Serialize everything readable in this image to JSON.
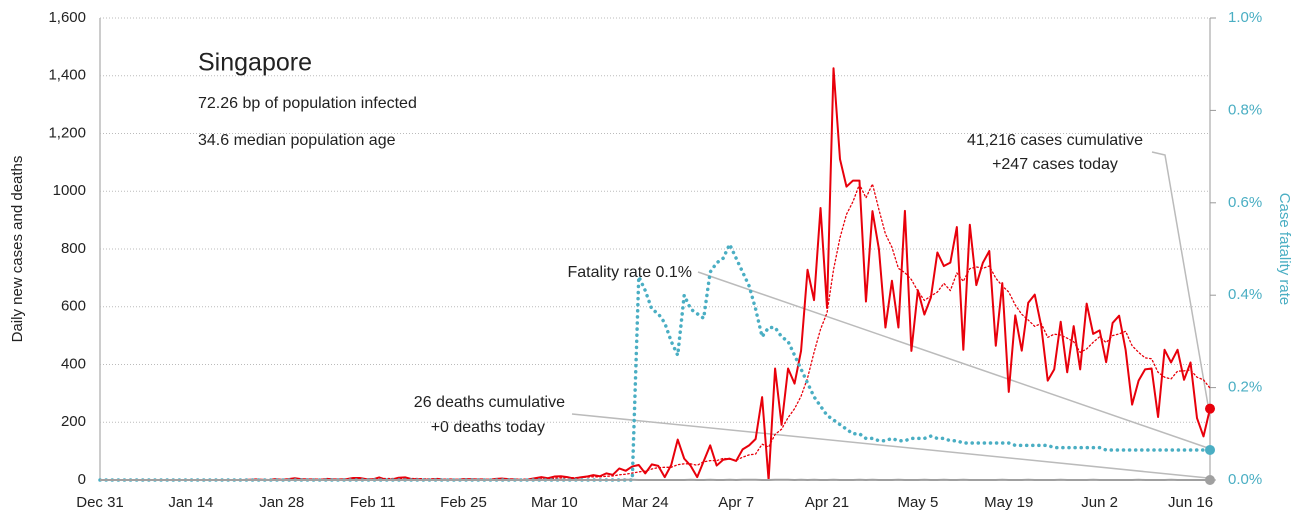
{
  "chart_data": {
    "type": "line",
    "annotations": [
      "Singapore",
      "72.26 bp of population infected",
      "34.6 median population age",
      "41,216 cases cumulative",
      "+247 cases today",
      "Fatality rate 0.1%",
      "26 deaths cumulative",
      "+0 deaths today"
    ],
    "ylabel": "Daily new cases and deaths",
    "y2label": "Case fatality rate",
    "categories": [
      "Dec 31",
      null,
      null,
      null,
      null,
      null,
      null,
      null,
      null,
      null,
      null,
      null,
      null,
      null,
      "Jan 14",
      null,
      null,
      null,
      null,
      null,
      null,
      null,
      null,
      null,
      null,
      null,
      null,
      null,
      "Jan 28",
      null,
      null,
      null,
      null,
      null,
      null,
      null,
      null,
      null,
      null,
      null,
      null,
      null,
      "Feb 11",
      null,
      null,
      null,
      null,
      null,
      null,
      null,
      null,
      null,
      null,
      null,
      null,
      null,
      "Feb 25",
      null,
      null,
      null,
      null,
      null,
      null,
      null,
      null,
      null,
      null,
      null,
      null,
      null,
      "Mar 10",
      null,
      null,
      null,
      null,
      null,
      null,
      null,
      null,
      null,
      null,
      null,
      null,
      null,
      "Mar 24",
      null,
      null,
      null,
      null,
      null,
      null,
      null,
      null,
      null,
      null,
      null,
      null,
      null,
      "Apr 7",
      null,
      null,
      null,
      null,
      null,
      null,
      null,
      null,
      null,
      null,
      null,
      null,
      null,
      "Apr 21",
      null,
      null,
      null,
      null,
      null,
      null,
      null,
      null,
      null,
      null,
      null,
      null,
      null,
      "May 5",
      null,
      null,
      null,
      null,
      null,
      null,
      null,
      null,
      null,
      null,
      null,
      null,
      null,
      "May 19",
      null,
      null,
      null,
      null,
      null,
      null,
      null,
      null,
      null,
      null,
      null,
      null,
      null,
      "Jun 2",
      null,
      null,
      null,
      null,
      null,
      null,
      null,
      null,
      null,
      null,
      null,
      null,
      null,
      "Jun 16",
      null,
      null,
      null
    ],
    "ylim": [
      0,
      1600
    ],
    "yticks": [
      0,
      200,
      400,
      600,
      800,
      1000,
      {
        "value": 1200,
        "label": "1,200"
      },
      {
        "value": 1400,
        "label": "1,400"
      },
      {
        "value": 1600,
        "label": "1,600"
      }
    ],
    "y2lim": [
      0,
      1.0
    ],
    "y2ticks": [
      {
        "value": 0,
        "label": "0.0%"
      },
      {
        "value": 0.2,
        "label": "0.2%"
      },
      {
        "value": 0.4,
        "label": "0.4%"
      },
      {
        "value": 0.6,
        "label": "0.6%"
      },
      {
        "value": 0.8,
        "label": "0.8%"
      },
      {
        "value": 1.0,
        "label": "1.0%"
      }
    ],
    "grid": true,
    "series": [
      {
        "color": "#e8000b",
        "dash": false,
        "values": [
          0,
          0,
          0,
          0,
          0,
          0,
          0,
          0,
          0,
          0,
          0,
          0,
          0,
          0,
          0,
          0,
          0,
          0,
          0,
          0,
          0,
          0,
          0,
          1,
          2,
          1,
          0,
          3,
          1,
          3,
          6,
          3,
          2,
          2,
          1,
          4,
          2,
          2,
          3,
          7,
          7,
          3,
          2,
          9,
          1,
          2,
          8,
          9,
          3,
          3,
          1,
          2,
          4,
          1,
          2,
          1,
          3,
          3,
          2,
          2,
          1,
          4,
          5,
          3,
          2,
          0,
          2,
          6,
          10,
          6,
          12,
          13,
          10,
          5,
          9,
          12,
          17,
          13,
          23,
          18,
          40,
          32,
          47,
          52,
          23,
          54,
          49,
          10,
          52,
          140,
          74,
          49,
          10,
          65,
          120,
          50,
          70,
          74,
          66,
          106,
          120,
          142,
          287,
          0,
          386,
          191,
          386,
          334,
          447,
          728,
          623,
          942,
          596,
          1426,
          1111,
          1016,
          1037,
          1037,
          618,
          931,
          799,
          528,
          690,
          528,
          932,
          447,
          657,
          573,
          632,
          788,
          741,
          753,
          876,
          451,
          884,
          675,
          752,
          793,
          465,
          682,
          305,
          570,
          448,
          614,
          642,
          533,
          344,
          383,
          548,
          373,
          533,
          383,
          611,
          506,
          518,
          408,
          544,
          569,
          451,
          261,
          344,
          383,
          386,
          218,
          451,
          407,
          451,
          347,
          407,
          214,
          151,
          247
        ]
      },
      {
        "color": "#e8000b",
        "dash": true,
        "values": [
          0,
          0,
          0,
          0,
          0,
          0,
          0,
          0,
          0,
          0,
          0,
          0,
          0,
          0,
          0,
          0,
          0,
          0,
          0,
          0,
          0,
          0,
          0,
          0,
          0,
          1,
          1,
          1,
          1,
          1,
          2,
          2,
          2,
          3,
          3,
          3,
          3,
          2,
          2,
          3,
          4,
          4,
          4,
          5,
          5,
          5,
          5,
          5,
          5,
          5,
          4,
          4,
          4,
          3,
          3,
          2,
          2,
          2,
          2,
          2,
          2,
          2,
          3,
          3,
          3,
          3,
          3,
          3,
          4,
          5,
          6,
          7,
          8,
          8,
          9,
          10,
          11,
          11,
          13,
          14,
          18,
          20,
          24,
          28,
          31,
          38,
          43,
          44,
          44,
          53,
          56,
          56,
          51,
          63,
          67,
          67,
          75,
          72,
          68,
          79,
          87,
          90,
          124,
          114,
          158,
          176,
          216,
          247,
          290,
          353,
          442,
          522,
          579,
          728,
          839,
          920,
          964,
          1024,
          977,
          1025,
          936,
          852,
          806,
          733,
          718,
          694,
          654,
          622,
          637,
          651,
          681,
          656,
          717,
          688,
          732,
          738,
          733,
          741,
          699,
          672,
          651,
          606,
          574,
          554,
          532,
          542,
          494,
          505,
          502,
          491,
          479,
          442,
          454,
          477,
          496,
          476,
          500,
          506,
          515,
          465,
          442,
          423,
          420,
          373,
          356,
          350,
          377,
          378,
          381,
          356,
          347,
          318
        ]
      },
      {
        "color": "#4aaec3",
        "dash": true,
        "axis": "y2",
        "values": [
          0,
          0,
          0,
          0,
          0,
          0,
          0,
          0,
          0,
          0,
          0,
          0,
          0,
          0,
          0,
          0,
          0,
          0,
          0,
          0,
          0,
          0,
          0,
          0,
          0,
          0,
          0,
          0,
          0,
          0,
          0,
          0,
          0,
          0,
          0,
          0,
          0,
          0,
          0,
          0,
          0,
          0,
          0,
          0,
          0,
          0,
          0,
          0,
          0,
          0,
          0,
          0,
          0,
          0,
          0,
          0,
          0,
          0,
          0,
          0,
          0,
          0,
          0,
          0,
          0,
          0,
          0,
          0,
          0,
          0,
          0,
          0,
          0,
          0,
          0,
          0,
          0,
          0,
          0,
          0,
          0,
          0,
          0,
          0.44,
          0.41,
          0.37,
          0.36,
          0.34,
          0.3,
          0.27,
          0.4,
          0.37,
          0.36,
          0.35,
          0.45,
          0.47,
          0.48,
          0.51,
          0.48,
          0.45,
          0.42,
          0.37,
          0.31,
          0.33,
          0.33,
          0.31,
          0.3,
          0.27,
          0.24,
          0.21,
          0.18,
          0.16,
          0.14,
          0.13,
          0.12,
          0.11,
          0.1,
          0.1,
          0.09,
          0.09,
          0.085,
          0.085,
          0.09,
          0.085,
          0.085,
          0.09,
          0.09,
          0.09,
          0.095,
          0.09,
          0.09,
          0.085,
          0.085,
          0.08,
          0.08,
          0.08,
          0.08,
          0.08,
          0.08,
          0.08,
          0.08,
          0.075,
          0.075,
          0.075,
          0.075,
          0.075,
          0.075,
          0.07,
          0.07,
          0.07,
          0.07,
          0.07,
          0.07,
          0.07,
          0.07,
          0.065,
          0.065,
          0.065,
          0.065,
          0.065,
          0.065,
          0.065,
          0.065,
          0.065,
          0.065,
          0.065,
          0.065,
          0.065,
          0.065,
          0.065,
          0.065,
          0.065
        ]
      },
      {
        "color": "#a0a0a0",
        "dash": false,
        "values": [
          0,
          0,
          0,
          0,
          0,
          0,
          0,
          0,
          0,
          0,
          0,
          0,
          0,
          0,
          0,
          0,
          0,
          0,
          0,
          0,
          0,
          0,
          0,
          0,
          0,
          0,
          0,
          0,
          0,
          0,
          0,
          0,
          0,
          0,
          0,
          0,
          0,
          0,
          0,
          0,
          0,
          0,
          0,
          0,
          0,
          0,
          0,
          0,
          0,
          0,
          0,
          0,
          0,
          0,
          0,
          0,
          0,
          0,
          0,
          0,
          0,
          0,
          0,
          0,
          0,
          0,
          0,
          0,
          0,
          0,
          0,
          0,
          0,
          0,
          0,
          0,
          0,
          0,
          0,
          0,
          0,
          1,
          1,
          0,
          0,
          0,
          0,
          0,
          0,
          0,
          0,
          1,
          0,
          0,
          1,
          0,
          0,
          1,
          0,
          1,
          1,
          1,
          0,
          0,
          1,
          1,
          1,
          0,
          1,
          0,
          1,
          0,
          0,
          1,
          0,
          0,
          0,
          1,
          0,
          1,
          0,
          0,
          0,
          1,
          0,
          0,
          0,
          1,
          0,
          0,
          1,
          0,
          0,
          1,
          0,
          0,
          0,
          0,
          0,
          1,
          0,
          0,
          0,
          1,
          0,
          0,
          0,
          0,
          1,
          0,
          0,
          0,
          0,
          1,
          0,
          0,
          0,
          0,
          0,
          0,
          1,
          0,
          0,
          0,
          0,
          1,
          0,
          0,
          0,
          0,
          0,
          0
        ]
      }
    ]
  }
}
